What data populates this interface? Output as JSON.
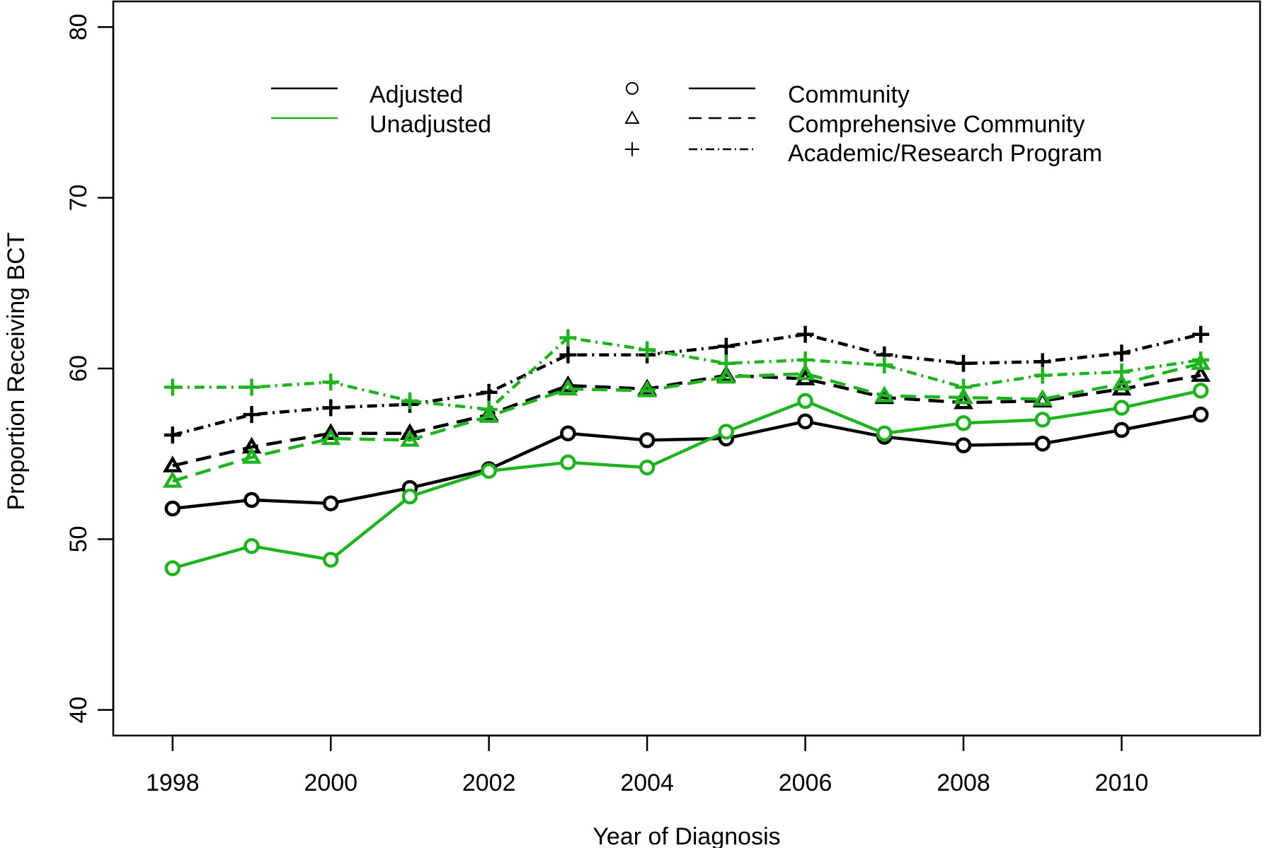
{
  "chart_data": {
    "type": "line",
    "title": "",
    "xlabel": "Year of Diagnosis",
    "ylabel": "Proportion Receiving BCT",
    "xlim": [
      1997.25,
      2011.75
    ],
    "ylim": [
      38.5,
      81.5
    ],
    "x_ticks": [
      1998,
      2000,
      2002,
      2004,
      2006,
      2008,
      2010
    ],
    "x_tick_labels": [
      "1998",
      "2000",
      "2002",
      "2004",
      "2006",
      "2008",
      "2010"
    ],
    "y_ticks": [
      40,
      50,
      60,
      70,
      80
    ],
    "y_tick_labels": [
      "40",
      "50",
      "60",
      "70",
      "80"
    ],
    "grid": false,
    "legend": {
      "placement": "top",
      "adjustment": [
        {
          "label": "Adjusted",
          "color": "#000000"
        },
        {
          "label": "Unadjusted",
          "color": "#1fb41f"
        }
      ],
      "facility": [
        {
          "label": "Community",
          "marker": "circle",
          "line": "solid"
        },
        {
          "label": "Comprehensive Community",
          "marker": "triangle",
          "line": "dashed"
        },
        {
          "label": "Academic/Research Program",
          "marker": "plus",
          "line": "dotdash"
        }
      ]
    },
    "x": [
      1998,
      1999,
      2000,
      2001,
      2002,
      2003,
      2004,
      2005,
      2006,
      2007,
      2008,
      2009,
      2010,
      2011
    ],
    "series": [
      {
        "facility": "Community",
        "adjustment": "Adjusted",
        "color": "#000000",
        "marker": "circle",
        "line": "solid",
        "values": [
          51.8,
          52.3,
          52.1,
          53.0,
          54.1,
          56.2,
          55.8,
          55.9,
          56.9,
          56.0,
          55.5,
          55.6,
          56.4,
          57.3
        ]
      },
      {
        "facility": "Community",
        "adjustment": "Unadjusted",
        "color": "#1fb41f",
        "marker": "circle",
        "line": "solid",
        "values": [
          48.3,
          49.6,
          48.8,
          52.5,
          54.0,
          54.5,
          54.2,
          56.3,
          58.1,
          56.2,
          56.8,
          57.0,
          57.7,
          58.7
        ]
      },
      {
        "facility": "Comprehensive Community",
        "adjustment": "Adjusted",
        "color": "#000000",
        "marker": "triangle",
        "line": "dashed",
        "values": [
          54.3,
          55.4,
          56.2,
          56.2,
          57.3,
          59.0,
          58.8,
          59.6,
          59.4,
          58.3,
          58.0,
          58.1,
          58.8,
          59.6
        ]
      },
      {
        "facility": "Comprehensive Community",
        "adjustment": "Unadjusted",
        "color": "#1fb41f",
        "marker": "triangle",
        "line": "dashed",
        "values": [
          53.4,
          54.8,
          55.9,
          55.8,
          57.2,
          58.8,
          58.7,
          59.5,
          59.7,
          58.4,
          58.3,
          58.2,
          59.1,
          60.3
        ]
      },
      {
        "facility": "Academic/Research Program",
        "adjustment": "Adjusted",
        "color": "#000000",
        "marker": "plus",
        "line": "dotdash",
        "values": [
          56.1,
          57.3,
          57.7,
          57.9,
          58.6,
          60.8,
          60.8,
          61.3,
          62.0,
          60.8,
          60.3,
          60.4,
          60.9,
          62.0
        ]
      },
      {
        "facility": "Academic/Research Program",
        "adjustment": "Unadjusted",
        "color": "#1fb41f",
        "marker": "plus",
        "line": "dotdash",
        "values": [
          58.9,
          58.9,
          59.2,
          58.1,
          57.6,
          61.8,
          61.1,
          60.3,
          60.5,
          60.2,
          58.9,
          59.6,
          59.8,
          60.5
        ]
      }
    ]
  }
}
